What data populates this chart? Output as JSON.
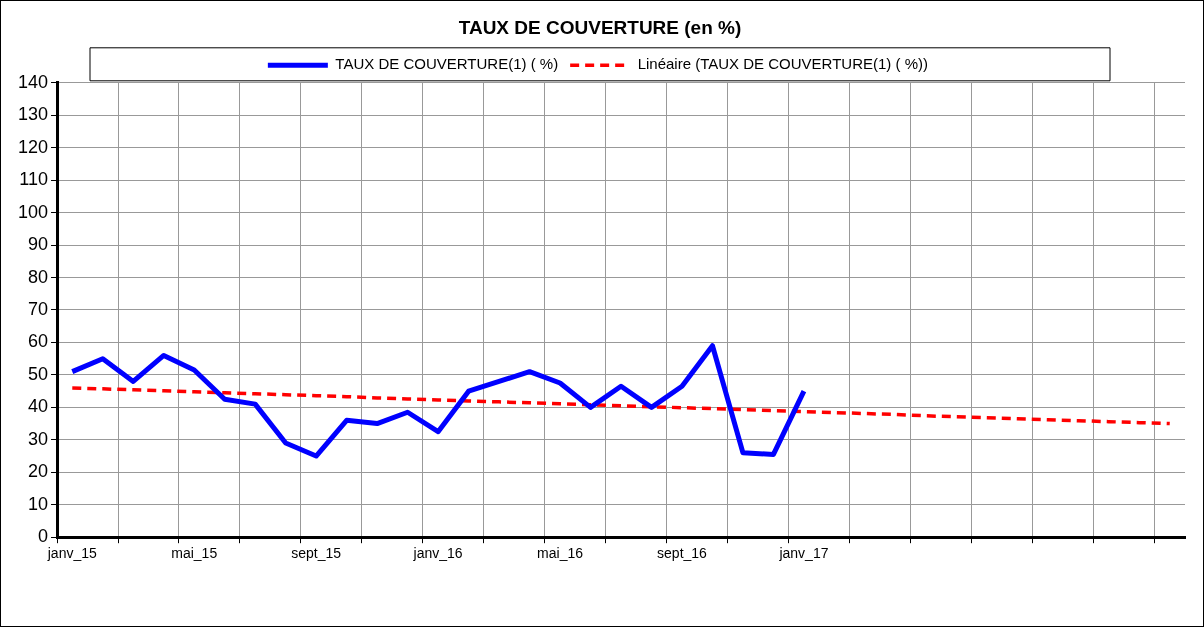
{
  "chart_data": {
    "type": "line",
    "title": "TAUX DE COUVERTURE (en %)",
    "categories": [
      "janv_15",
      null,
      null,
      null,
      "mai_15",
      null,
      null,
      null,
      "sept_15",
      null,
      null,
      null,
      "janv_16",
      null,
      null,
      null,
      "mai_16",
      null,
      null,
      null,
      "sept_16",
      null,
      null,
      null,
      "janv_17",
      null,
      null,
      null,
      null,
      null,
      null,
      null,
      null,
      null,
      null,
      null,
      null
    ],
    "series": [
      {
        "name": "TAUX DE COUVERTURE(1) ( %)",
        "color": "#0000ff",
        "line_style": "solid",
        "values": [
          51,
          55,
          48,
          56,
          51.5,
          42.5,
          41,
          29,
          25,
          36,
          35,
          38.5,
          32.5,
          45,
          48,
          51,
          47.5,
          40,
          46.5,
          40,
          46.5,
          59,
          26,
          25.5,
          45,
          null,
          null,
          null,
          null,
          null,
          null,
          null,
          null,
          null,
          null,
          null,
          null
        ]
      },
      {
        "name": "Linéaire (TAUX DE COUVERTURE(1) ( %)) ",
        "color": "#ff0000",
        "line_style": "dashed",
        "values": [
          46,
          45.7,
          45.4,
          45.1,
          44.8,
          44.5,
          44.2,
          43.9,
          43.6,
          43.3,
          42.9,
          42.6,
          42.3,
          42,
          41.7,
          41.4,
          41.1,
          40.8,
          40.5,
          40.2,
          39.9,
          39.6,
          39.3,
          39,
          38.7,
          38.4,
          38.1,
          37.8,
          37.4,
          37.1,
          36.8,
          36.5,
          36.2,
          35.9,
          35.6,
          35.3,
          35
        ]
      }
    ],
    "ylim": [
      0,
      140
    ],
    "yticks": [
      0,
      10,
      20,
      30,
      40,
      50,
      60,
      70,
      80,
      90,
      100,
      110,
      120,
      130,
      140
    ],
    "grid": true,
    "legend": "top",
    "marker": "none"
  }
}
